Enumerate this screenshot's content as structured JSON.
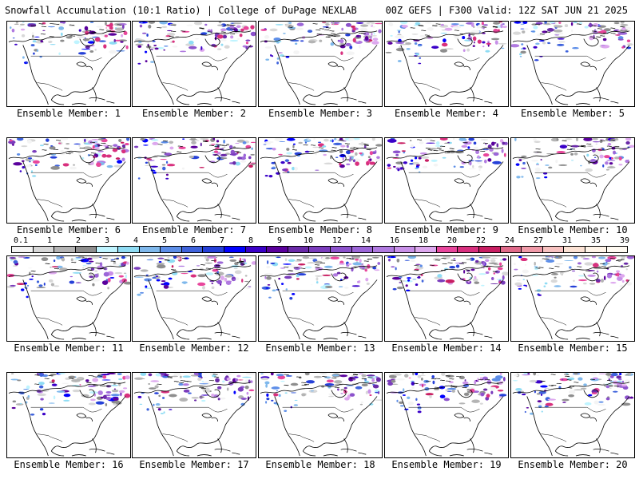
{
  "header": {
    "left": "Snowfall Accumulation (10:1 Ratio) | College of DuPage NEXLAB",
    "right": "00Z GEFS | F300 Valid: 12Z SAT JUN 21 2025"
  },
  "colorbar": {
    "labels": [
      "0.1",
      "1",
      "2",
      "3",
      "4",
      "5",
      "6",
      "7",
      "8",
      "9",
      "10",
      "12",
      "14",
      "16",
      "18",
      "20",
      "22",
      "24",
      "27",
      "31",
      "35",
      "39"
    ],
    "colors": [
      "#f4f4f4",
      "#d8d8d8",
      "#b4b4b4",
      "#8e8e8e",
      "#bff4ff",
      "#8fdcf4",
      "#7fb8ec",
      "#5d8ee8",
      "#3f63dc",
      "#2540d8",
      "#0000ff",
      "#3a00c8",
      "#5a009c",
      "#6a2aa8",
      "#7a3cbc",
      "#8c52cc",
      "#9c66d8",
      "#b07ae0",
      "#c890e8",
      "#dda8ee",
      "#e8469c",
      "#d8307e",
      "#c81e62",
      "#e06a8a",
      "#f09aa8",
      "#f8c2c0",
      "#fce2d4",
      "#fff4e8",
      "#fffaf2"
    ]
  },
  "members": [
    {
      "label": "Ensemble Member: 1"
    },
    {
      "label": "Ensemble Member: 2"
    },
    {
      "label": "Ensemble Member: 3"
    },
    {
      "label": "Ensemble Member: 4"
    },
    {
      "label": "Ensemble Member: 5"
    },
    {
      "label": "Ensemble Member: 6"
    },
    {
      "label": "Ensemble Member: 7"
    },
    {
      "label": "Ensemble Member: 8"
    },
    {
      "label": "Ensemble Member: 9"
    },
    {
      "label": "Ensemble Member: 10"
    },
    {
      "label": "Ensemble Member: 11"
    },
    {
      "label": "Ensemble Member: 12"
    },
    {
      "label": "Ensemble Member: 13"
    },
    {
      "label": "Ensemble Member: 14"
    },
    {
      "label": "Ensemble Member: 15"
    },
    {
      "label": "Ensemble Member: 16"
    },
    {
      "label": "Ensemble Member: 17"
    },
    {
      "label": "Ensemble Member: 18"
    },
    {
      "label": "Ensemble Member: 19"
    },
    {
      "label": "Ensemble Member: 20"
    }
  ]
}
